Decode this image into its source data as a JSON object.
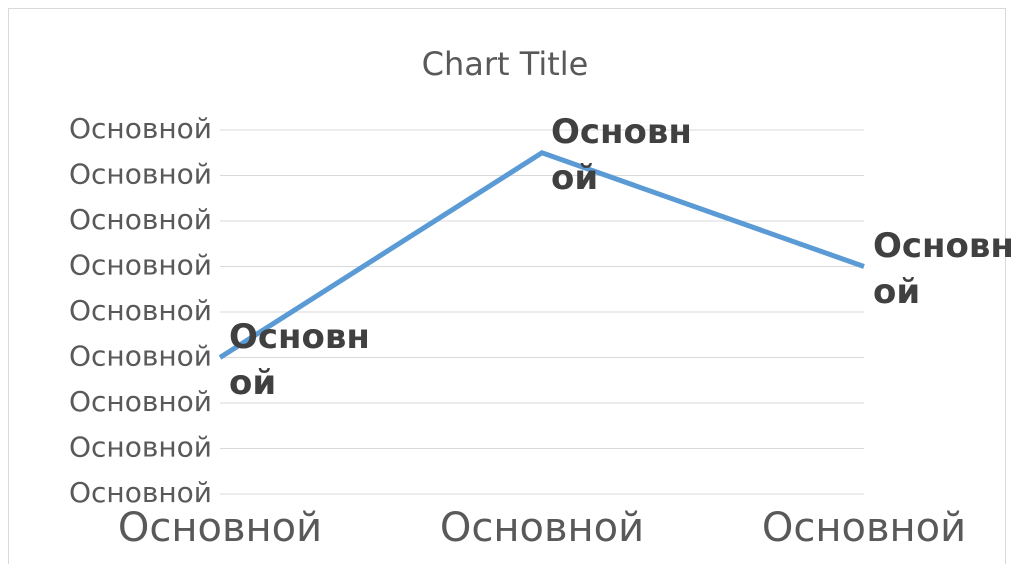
{
  "chart_data": {
    "type": "line",
    "title": "Chart Title",
    "categories": [
      "Основной",
      "Основной",
      "Основной"
    ],
    "series": [
      {
        "name": "Основной",
        "color": "#5b9bd5",
        "values": [
          3,
          7.5,
          5
        ],
        "value_labels": [
          "Основной",
          "Основной",
          "Основной"
        ]
      }
    ],
    "ylim": [
      0,
      8
    ],
    "yticks": [
      {
        "value": 0,
        "label": "Основной"
      },
      {
        "value": 1,
        "label": "Основной"
      },
      {
        "value": 2,
        "label": "Основной"
      },
      {
        "value": 3,
        "label": "Основной"
      },
      {
        "value": 4,
        "label": "Основной"
      },
      {
        "value": 5,
        "label": "Основной"
      },
      {
        "value": 6,
        "label": "Основной"
      },
      {
        "value": 7,
        "label": "Основной"
      },
      {
        "value": 8,
        "label": "Основной"
      }
    ],
    "grid": true
  }
}
